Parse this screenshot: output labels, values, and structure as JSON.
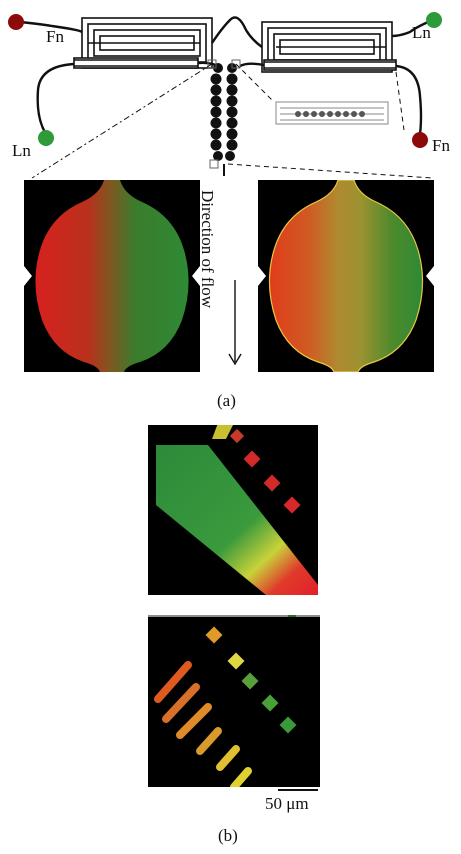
{
  "top_diagram": {
    "labels": {
      "fn_left": "Fn",
      "ln_left": "Ln",
      "ln_right": "Ln",
      "fn_right": "Fn"
    },
    "colors": {
      "fn": "#8b0a0a",
      "ln": "#2e9a3a",
      "channel": "#111111"
    }
  },
  "flow_label": "Direction of flow",
  "panel_a_label": "(a)",
  "panel_b_label": "(b)",
  "scale_bar_label": "50 μm"
}
